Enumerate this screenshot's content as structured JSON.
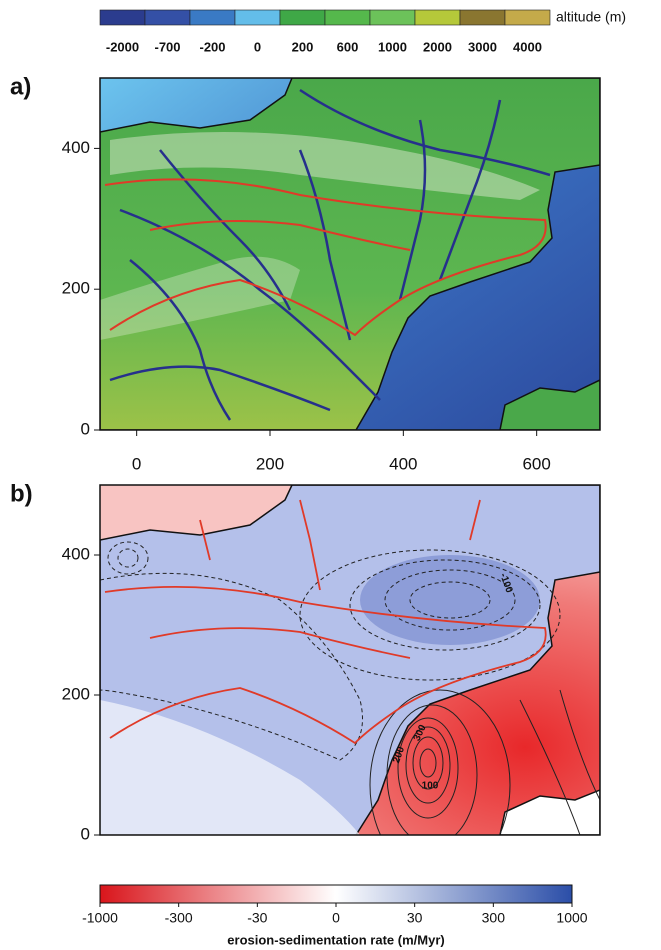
{
  "altitude_bar": {
    "label": "altitude (m)",
    "ticks": [
      -2000,
      -700,
      -200,
      0,
      200,
      600,
      1000,
      2000,
      3000,
      4000
    ],
    "colors": [
      "#2b3c8e",
      "#3450a6",
      "#3a7ac4",
      "#63bde9",
      "#3fa847",
      "#55b84c",
      "#6cc25a",
      "#b5c83a",
      "#8a7630",
      "#c4aa4a"
    ]
  },
  "panel_a": {
    "label": "a)",
    "xlim": [
      -55,
      695
    ],
    "ylim": [
      0,
      500
    ],
    "xticks": [
      0,
      200,
      400,
      600
    ],
    "yticks": [
      0,
      200,
      400
    ]
  },
  "panel_b": {
    "label": "b)",
    "ylim": [
      0,
      500
    ],
    "yticks": [
      0,
      200,
      400
    ],
    "contour_labels": [
      "-100",
      "100",
      "200",
      "300"
    ]
  },
  "rate_bar": {
    "label": "erosion-sedimentation rate (m/Myr)",
    "ticks": [
      -1000,
      -300,
      -30,
      0,
      30,
      300,
      1000
    ],
    "colors": [
      "#d9151b",
      "#ffffff",
      "#2b4ea8"
    ]
  }
}
